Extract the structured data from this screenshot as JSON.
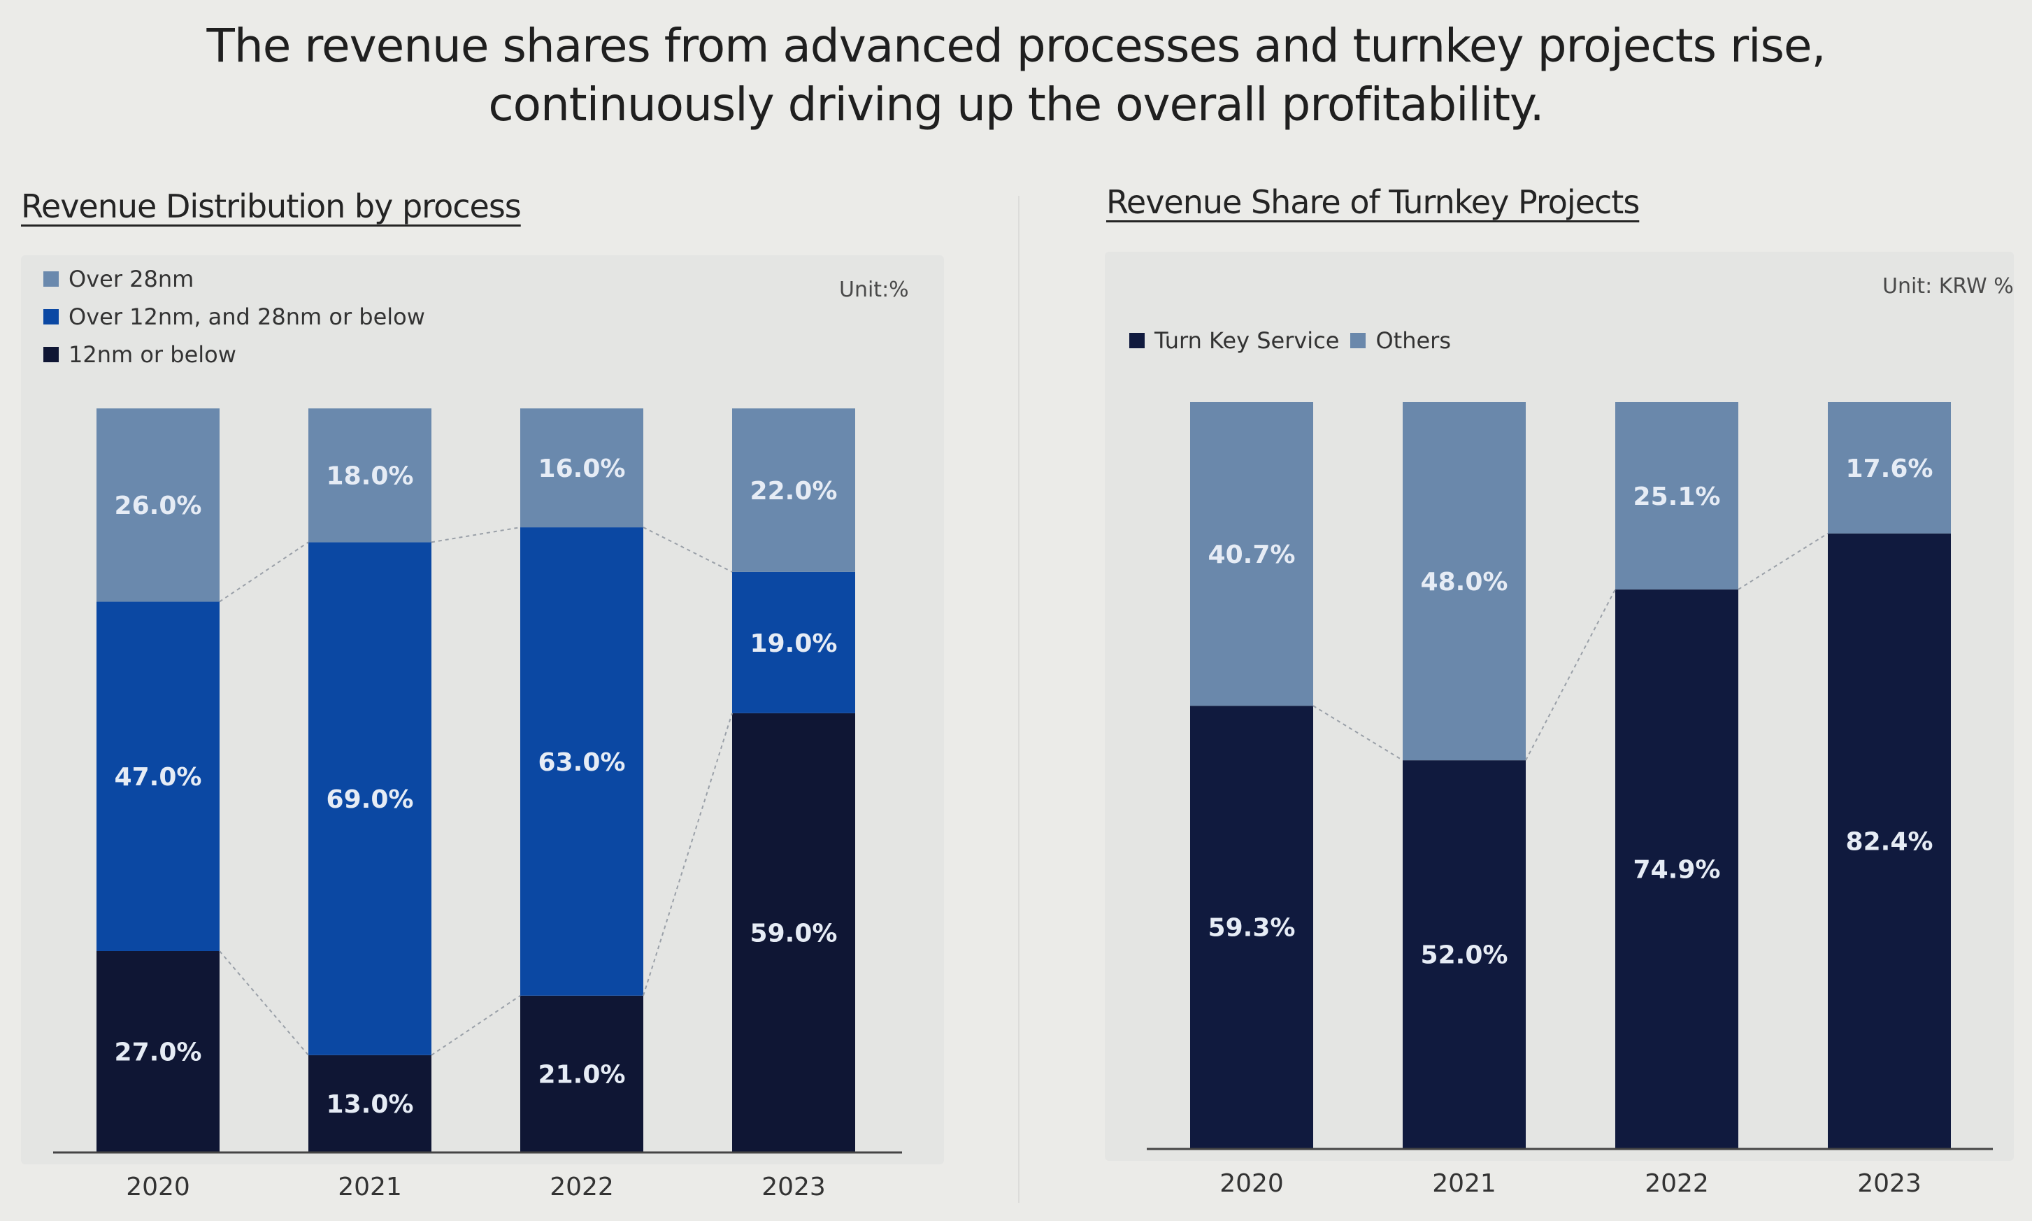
{
  "headline": {
    "line1": "The revenue shares from advanced processes and turnkey projects rise,",
    "line2": "continuously driving up the overall profitability."
  },
  "colors": {
    "dark": "#0f1634",
    "mid": "#0b48a3",
    "light": "#6a89ad",
    "dark_right": "#101a3e",
    "light_right": "#6a88ab",
    "connector": "#9aa0a8"
  },
  "chart_data": [
    {
      "type": "bar",
      "stacked": true,
      "title": "Revenue Distribution by process",
      "unit": "Unit:%",
      "categories": [
        "2020",
        "2021",
        "2022",
        "2023"
      ],
      "series": [
        {
          "name": "12nm or below",
          "values": [
            27.0,
            13.0,
            21.0,
            59.0
          ],
          "labels": [
            "27.0%",
            "13.0%",
            "21.0%",
            "59.0%"
          ]
        },
        {
          "name": "Over 12nm, and 28nm or below",
          "values": [
            47.0,
            69.0,
            63.0,
            19.0
          ],
          "labels": [
            "47.0%",
            "69.0%",
            "63.0%",
            "19.0%"
          ]
        },
        {
          "name": "Over 28nm",
          "values": [
            26.0,
            18.0,
            16.0,
            22.0
          ],
          "labels": [
            "26.0%",
            "18.0%",
            "16.0%",
            "22.0%"
          ]
        }
      ],
      "legend": [
        "Over 28nm",
        "Over 12nm, and 28nm or below",
        "12nm or below"
      ],
      "legend_position": "top-left",
      "ylim": [
        0,
        100
      ],
      "grid": false
    },
    {
      "type": "bar",
      "stacked": true,
      "title": "Revenue Share of Turnkey Projects",
      "unit": "Unit: KRW %",
      "categories": [
        "2020",
        "2021",
        "2022",
        "2023"
      ],
      "series": [
        {
          "name": "Turn Key Service",
          "values": [
            59.3,
            52.0,
            74.9,
            82.4
          ],
          "labels": [
            "59.3%",
            "52.0%",
            "74.9%",
            "82.4%"
          ]
        },
        {
          "name": "Others",
          "values": [
            40.7,
            48.0,
            25.1,
            17.6
          ],
          "labels": [
            "40.7%",
            "48.0%",
            "25.1%",
            "17.6%"
          ]
        }
      ],
      "legend": [
        "Turn Key Service",
        "Others"
      ],
      "legend_position": "top-left",
      "ylim": [
        0,
        100
      ],
      "grid": false
    }
  ]
}
